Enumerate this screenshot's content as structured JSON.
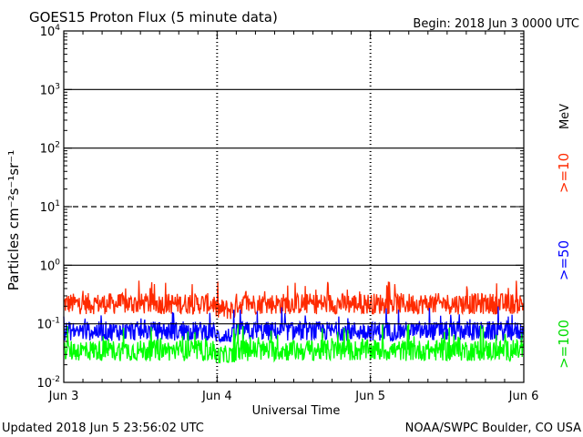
{
  "header": {
    "title": "GOES15 Proton Flux (5 minute data)",
    "begin": "Begin: 2018 Jun 3 0000 UTC"
  },
  "footer": {
    "updated": "Updated 2018 Jun  5 23:56:02 UTC",
    "source": "NOAA/SWPC Boulder, CO USA"
  },
  "chart_data": {
    "type": "line",
    "title": "GOES15 Proton Flux (5 minute data)",
    "xlabel": "Universal Time",
    "ylabel": "Particles cm⁻²s⁻¹sr⁻¹",
    "y_scale": "log",
    "ylim": [
      0.01,
      10000
    ],
    "xlim": [
      "2018-06-03 00:00",
      "2018-06-06 00:00"
    ],
    "x_ticks": [
      "Jun 3",
      "Jun 4",
      "Jun 5",
      "Jun 6"
    ],
    "y_ticks": [
      {
        "value": 0.01,
        "base": "10",
        "exp": "-2"
      },
      {
        "value": 0.1,
        "base": "10",
        "exp": "-1"
      },
      {
        "value": 1,
        "base": "10",
        "exp": "0"
      },
      {
        "value": 10,
        "base": "10",
        "exp": "1"
      },
      {
        "value": 100,
        "base": "10",
        "exp": "2"
      },
      {
        "value": 1000,
        "base": "10",
        "exp": "3"
      },
      {
        "value": 10000,
        "base": "10",
        "exp": "4"
      }
    ],
    "reference_lines": [
      {
        "value": 1000,
        "style": "solid"
      },
      {
        "value": 100,
        "style": "solid"
      },
      {
        "value": 10,
        "style": "dashed"
      },
      {
        "value": 1,
        "style": "solid"
      },
      {
        "value": 0.1,
        "style": "solid"
      }
    ],
    "day_dividers": [
      "Jun 4",
      "Jun 5"
    ],
    "unit_label": "MeV",
    "grid": false,
    "series": [
      {
        "name": ">=10",
        "color": "#ff2a00",
        "typical": 0.22,
        "min": 0.12,
        "max": 0.55
      },
      {
        "name": ">=50",
        "color": "#0000ff",
        "typical": 0.075,
        "min": 0.05,
        "max": 0.2
      },
      {
        "name": ">=100",
        "color": "#00ff00",
        "typical": 0.035,
        "min": 0.022,
        "max": 0.1
      }
    ]
  }
}
